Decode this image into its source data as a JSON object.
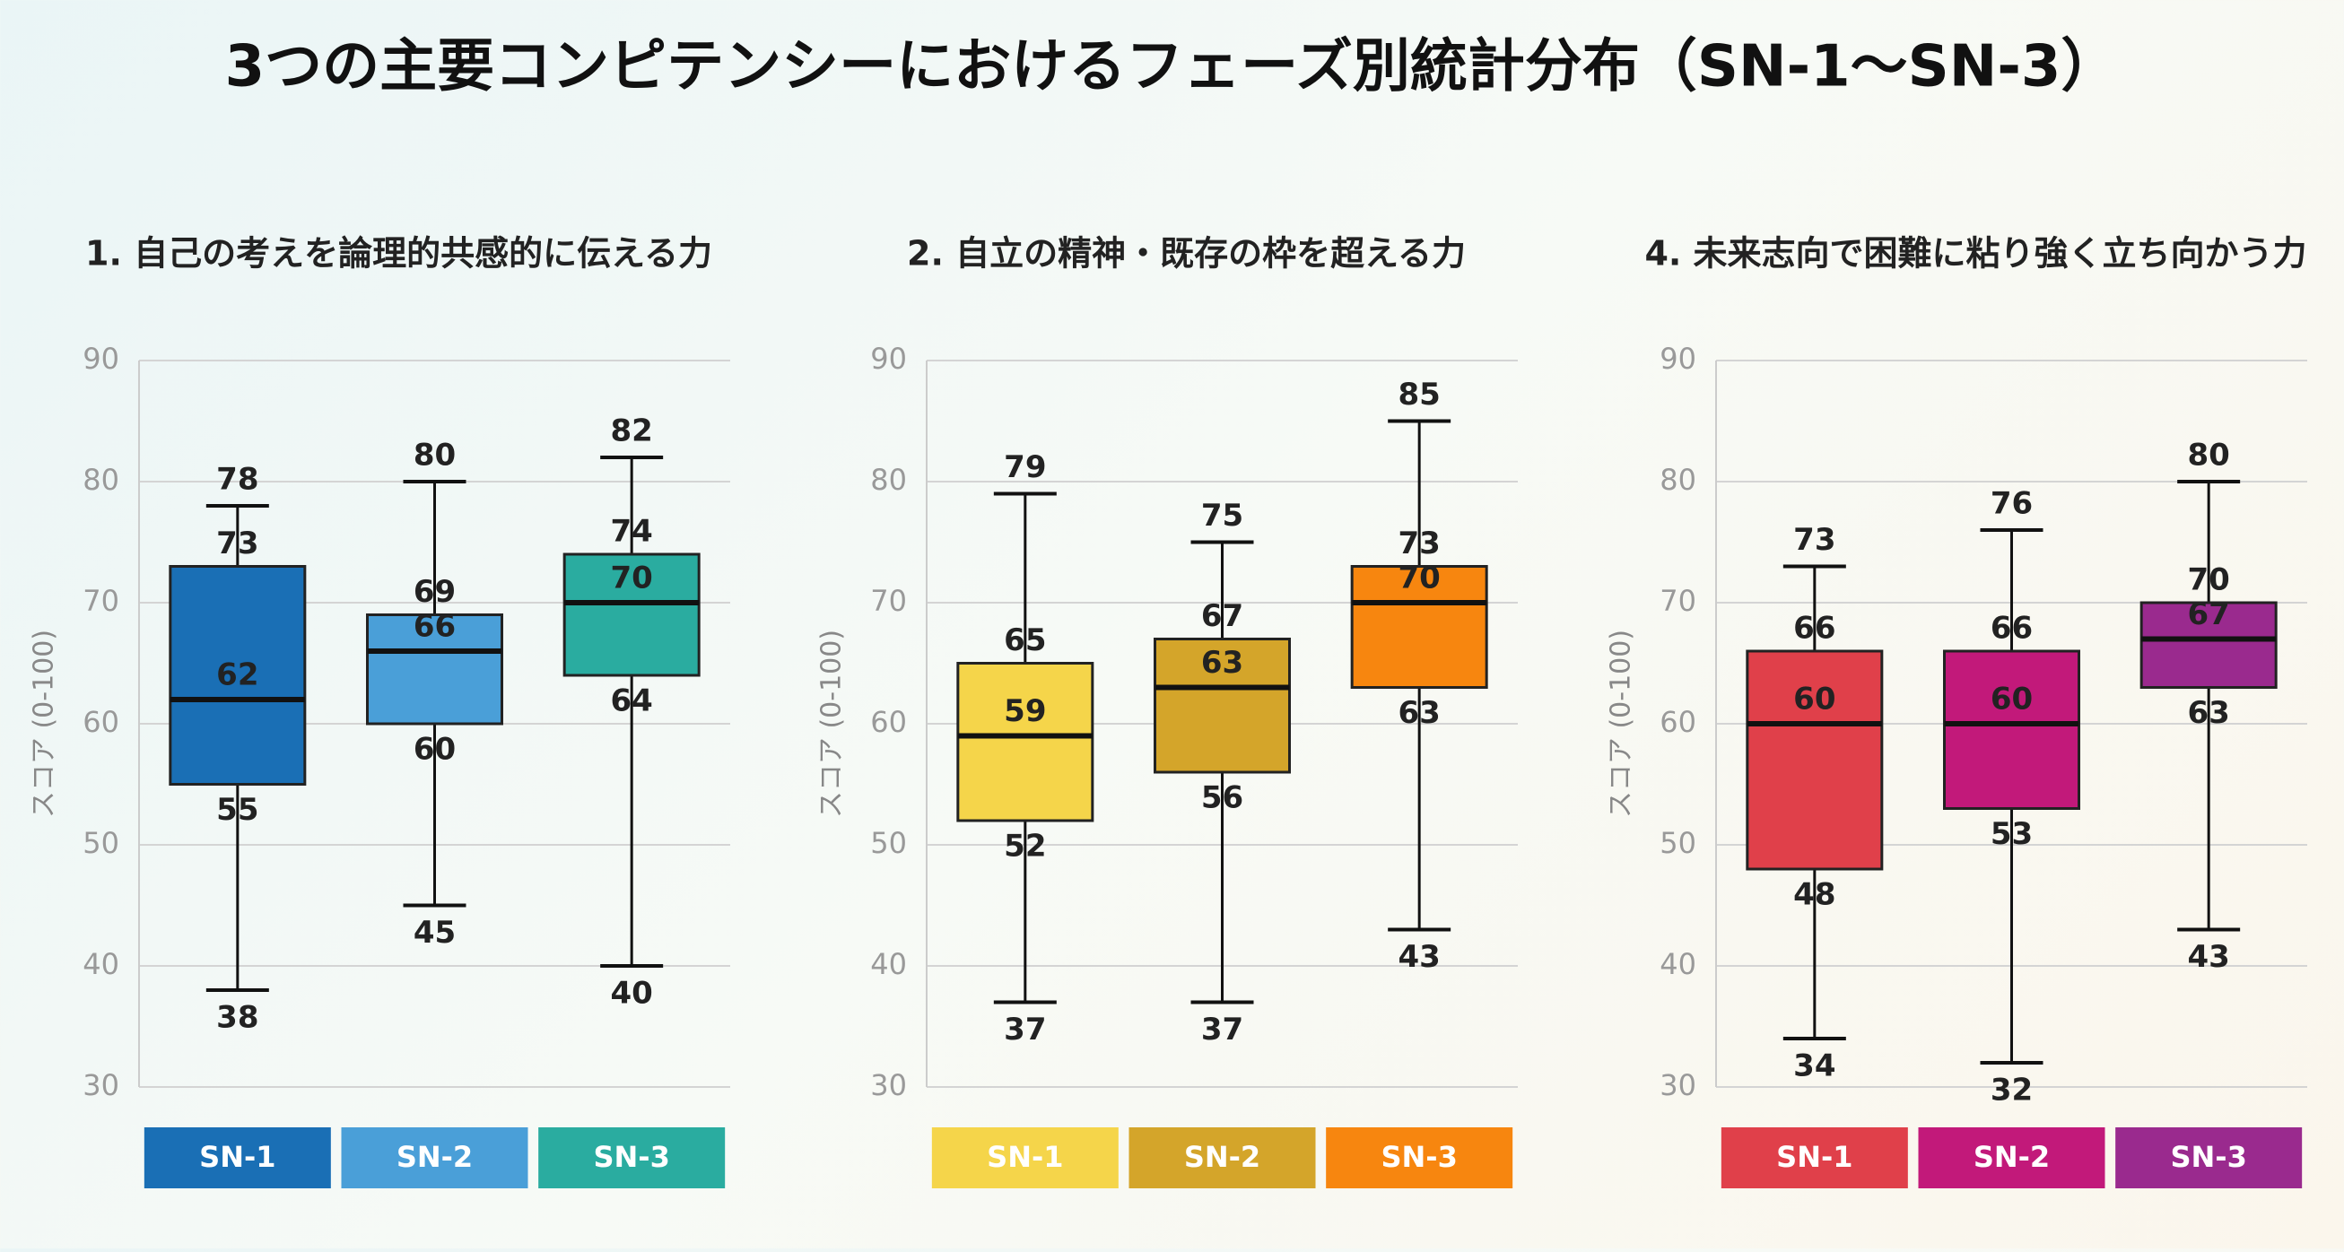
{
  "title": "3つの主要コンピテンシーにおけるフェーズ別統計分布（SN-1〜SN-3）",
  "chart_data": [
    {
      "type": "box",
      "title": "1. 自己の考えを論理的共感的に伝える力",
      "ylabel": "スコア (0-100)",
      "ylim": [
        30,
        90
      ],
      "yticks": [
        30,
        40,
        50,
        60,
        70,
        80,
        90
      ],
      "grid": true,
      "series": [
        {
          "name": "SN-1",
          "color": "#1a6fb5",
          "values": [
            38,
            55,
            62,
            73,
            78
          ]
        },
        {
          "name": "SN-2",
          "color": "#4a9fd8",
          "values": [
            45,
            60,
            66,
            69,
            80
          ]
        },
        {
          "name": "SN-3",
          "color": "#2aaca0",
          "values": [
            40,
            64,
            70,
            74,
            82
          ]
        }
      ]
    },
    {
      "type": "box",
      "title": "2. 自立の精神・既存の枠を超える力",
      "ylabel": "スコア (0-100)",
      "ylim": [
        30,
        90
      ],
      "yticks": [
        30,
        40,
        50,
        60,
        70,
        80,
        90
      ],
      "grid": true,
      "series": [
        {
          "name": "SN-1",
          "color": "#f5d54a",
          "values": [
            37,
            52,
            59,
            65,
            79
          ]
        },
        {
          "name": "SN-2",
          "color": "#d4a52a",
          "values": [
            37,
            56,
            63,
            67,
            75
          ]
        },
        {
          "name": "SN-3",
          "color": "#f7860f",
          "values": [
            43,
            63,
            70,
            73,
            85
          ]
        }
      ]
    },
    {
      "type": "box",
      "title": "4. 未来志向で困難に粘り強く立ち向かう力",
      "ylabel": "スコア (0-100)",
      "ylim": [
        30,
        90
      ],
      "yticks": [
        30,
        40,
        50,
        60,
        70,
        80,
        90
      ],
      "grid": true,
      "series": [
        {
          "name": "SN-1",
          "color": "#e0404a",
          "values": [
            34,
            48,
            60,
            66,
            73
          ]
        },
        {
          "name": "SN-2",
          "color": "#c2197a",
          "values": [
            32,
            53,
            60,
            66,
            76
          ]
        },
        {
          "name": "SN-3",
          "color": "#9a2a8e",
          "values": [
            43,
            63,
            67,
            70,
            80
          ]
        }
      ]
    }
  ]
}
